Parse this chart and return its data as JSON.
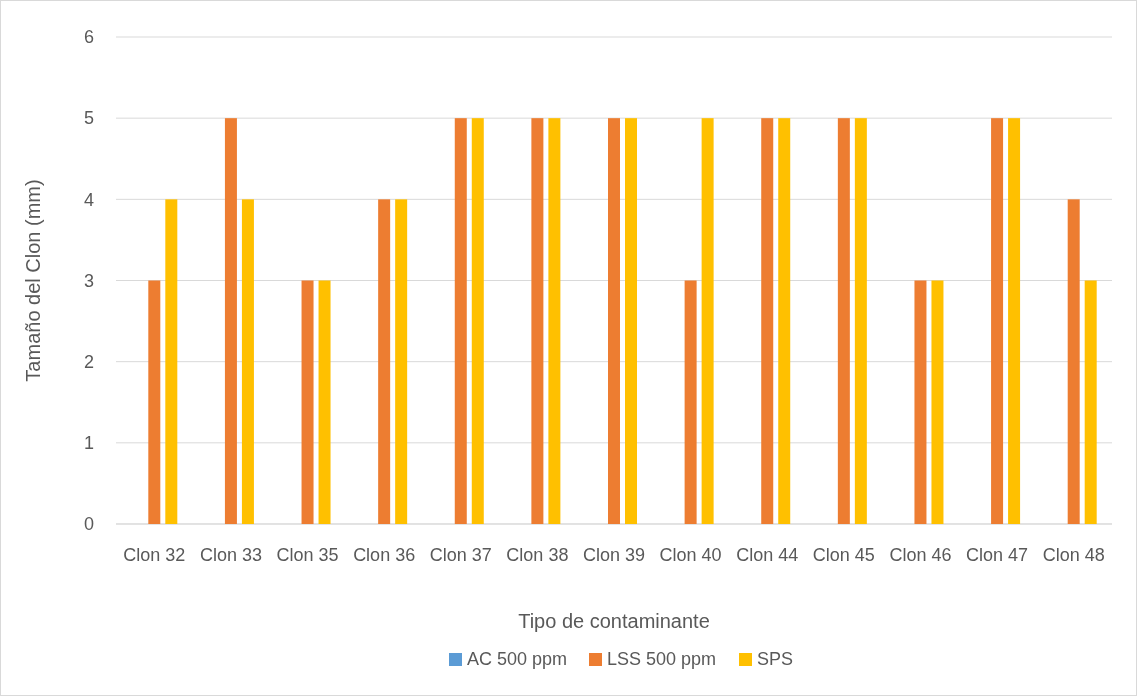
{
  "chart_data": {
    "type": "bar",
    "xlabel": "Tipo de contaminante",
    "ylabel": "Tamaño del Clon (mm)",
    "categories": [
      "Clon 32",
      "Clon 33",
      "Clon 35",
      "Clon 36",
      "Clon 37",
      "Clon 38",
      "Clon 39",
      "Clon 40",
      "Clon 44",
      "Clon 45",
      "Clon 46",
      "Clon 47",
      "Clon 48"
    ],
    "series": [
      {
        "name": "AC 500 ppm",
        "color": "#5b9bd5",
        "values": [
          0,
          0,
          0,
          0,
          0,
          0,
          0,
          0,
          0,
          0,
          0,
          0,
          0
        ]
      },
      {
        "name": "LSS 500 ppm",
        "color": "#ed7d31",
        "values": [
          3,
          5,
          3,
          4,
          5,
          5,
          5,
          3,
          5,
          5,
          3,
          5,
          4
        ]
      },
      {
        "name": "SPS",
        "color": "#ffc000",
        "values": [
          4,
          4,
          3,
          4,
          5,
          5,
          5,
          5,
          5,
          5,
          3,
          5,
          3
        ]
      }
    ],
    "ylim": [
      0,
      6
    ],
    "yticks": [
      0,
      1,
      2,
      3,
      4,
      5,
      6
    ],
    "grid": "y",
    "legend": "bottom"
  }
}
